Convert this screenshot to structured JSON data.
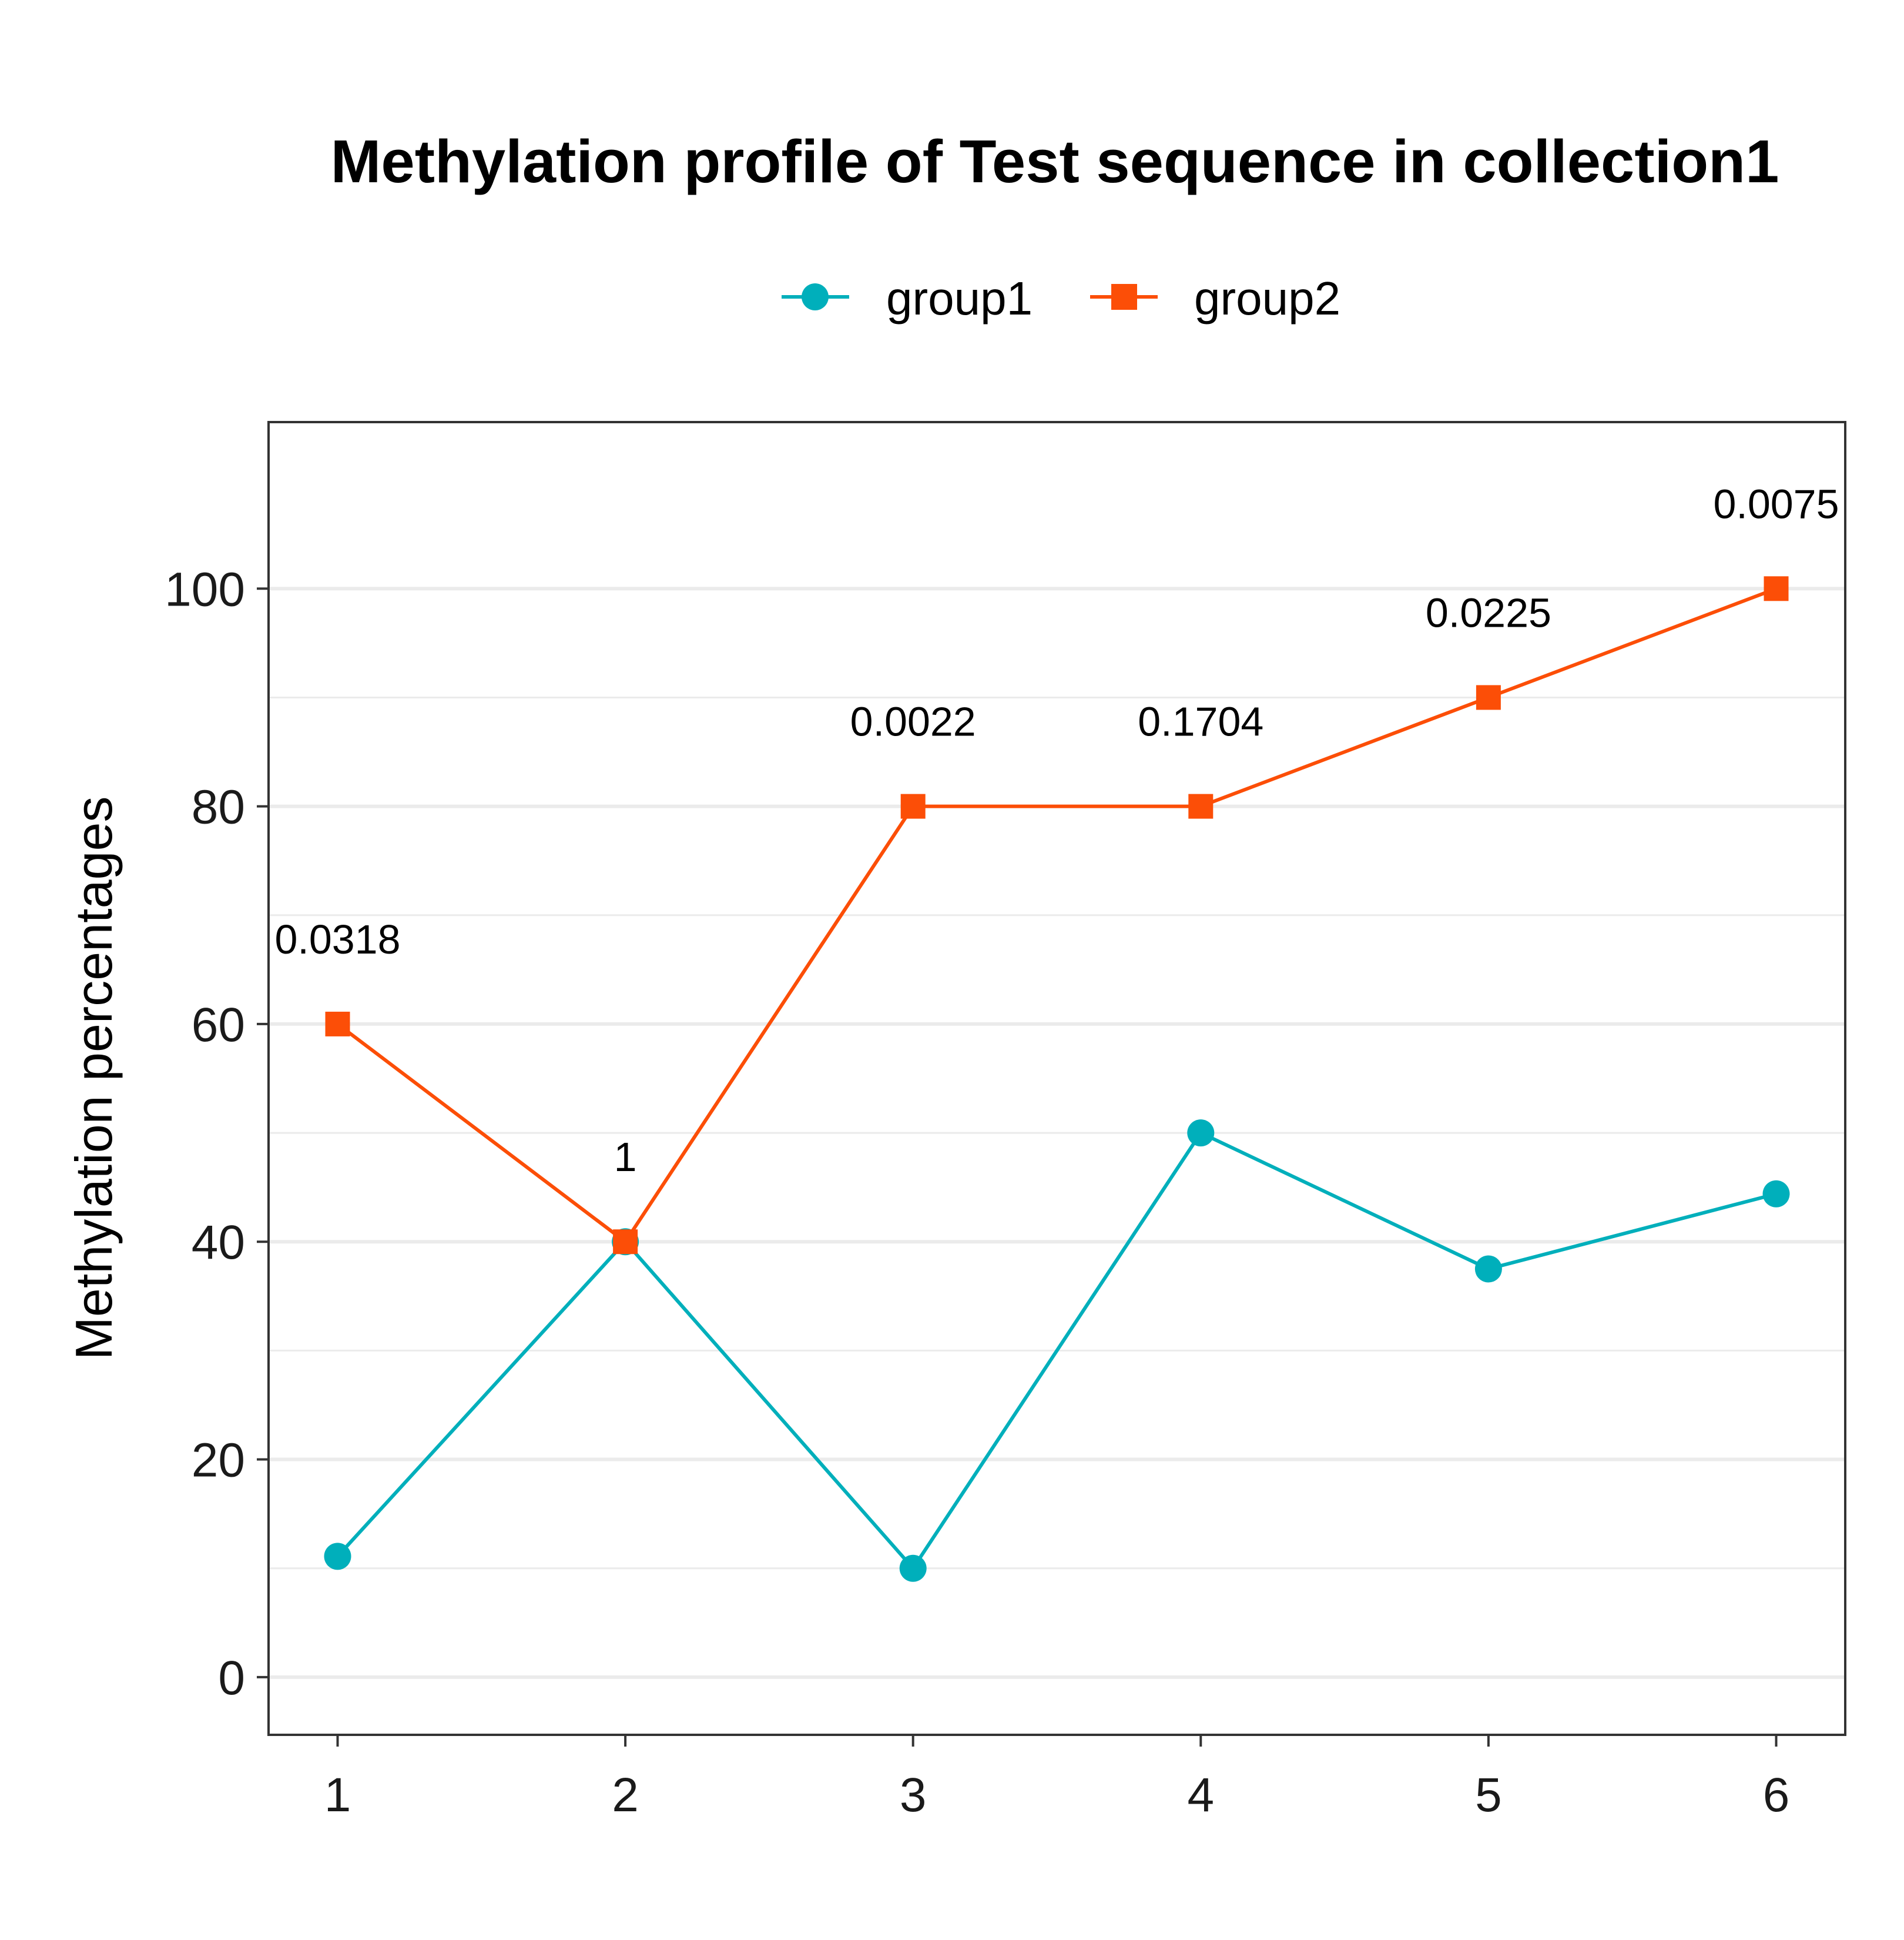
{
  "chart_data": {
    "type": "line",
    "title": "Methylation profile of Test sequence in collection1",
    "xlabel": "",
    "ylabel": "Methylation percentages",
    "x": [
      1,
      2,
      3,
      4,
      5,
      6
    ],
    "xlim": [
      0.76,
      6.24
    ],
    "ylim": [
      -5.3,
      115.3
    ],
    "yticks": [
      0,
      20,
      40,
      60,
      80,
      100
    ],
    "grid": true,
    "legend_position": "top",
    "series": [
      {
        "name": "group1",
        "marker": "circle",
        "color": "#00AFBB",
        "values": [
          11.1,
          40,
          10,
          50,
          37.5,
          44.4
        ]
      },
      {
        "name": "group2",
        "marker": "square",
        "color": "#FC4E07",
        "values": [
          60,
          40,
          80,
          80,
          90,
          100
        ]
      }
    ],
    "annotations": [
      {
        "x": 1,
        "y": 60,
        "text": "0.0318"
      },
      {
        "x": 2,
        "y": 40,
        "text": "1"
      },
      {
        "x": 3,
        "y": 80,
        "text": "0.0022"
      },
      {
        "x": 4,
        "y": 80,
        "text": "0.1704"
      },
      {
        "x": 5,
        "y": 90,
        "text": "0.0225"
      },
      {
        "x": 6,
        "y": 100,
        "text": "0.0075"
      }
    ]
  }
}
